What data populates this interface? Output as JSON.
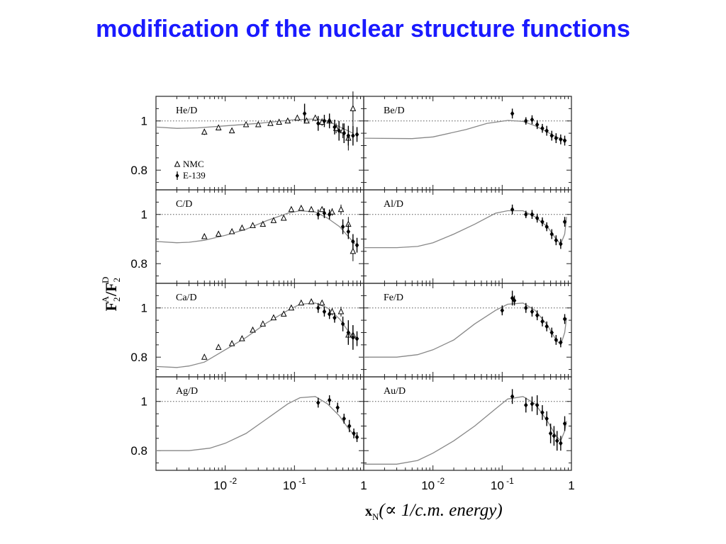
{
  "slide": {
    "title": "modification of the nuclear structure functions",
    "title_color": "#1a1aff"
  },
  "chart_data": {
    "type": "scatter",
    "title": "",
    "ylabel": "F2A/F2D",
    "ylabel_parts": {
      "main": "F",
      "sub": "2",
      "sup": "A",
      "slash": "/",
      "main2": "F",
      "sub2": "2",
      "sup2": "D"
    },
    "xlabel_parts": {
      "main": "x",
      "sub": "N",
      "rest": "(∝ 1/c.m. energy)"
    },
    "x_scale": "log",
    "xlim": [
      0.001,
      1
    ],
    "ylim": [
      0.72,
      1.1
    ],
    "x_tick_labels": [
      {
        "base": "10",
        "exp": "-2",
        "value": 0.01
      },
      {
        "base": "10",
        "exp": "-1",
        "value": 0.1
      },
      {
        "base": "1",
        "exp": "",
        "value": 1
      }
    ],
    "y_tick_labels": [
      "1",
      "0.8"
    ],
    "y_tick_values": [
      1,
      0.8
    ],
    "reference_line": 1,
    "legend": [
      {
        "name": "NMC",
        "marker": "open-triangle"
      },
      {
        "name": "E-139",
        "marker": "filled-diamond"
      }
    ],
    "panels": [
      {
        "label": "He/D",
        "curve": [
          [
            0.001,
            0.975
          ],
          [
            0.002,
            0.97
          ],
          [
            0.004,
            0.972
          ],
          [
            0.01,
            0.98
          ],
          [
            0.03,
            0.99
          ],
          [
            0.1,
            1.005
          ],
          [
            0.2,
            1.008
          ],
          [
            0.3,
            1.0
          ],
          [
            0.5,
            0.97
          ],
          [
            0.7,
            0.95
          ]
        ],
        "nmc": [
          [
            0.005,
            0.955,
            0.012
          ],
          [
            0.008,
            0.972,
            0.01
          ],
          [
            0.0125,
            0.96,
            0.01
          ],
          [
            0.02,
            0.985,
            0.008
          ],
          [
            0.03,
            0.985,
            0.008
          ],
          [
            0.045,
            0.99,
            0.008
          ],
          [
            0.06,
            0.995,
            0.008
          ],
          [
            0.08,
            1.0,
            0.008
          ],
          [
            0.11,
            1.012,
            0.01
          ],
          [
            0.15,
            1.0,
            0.01
          ],
          [
            0.2,
            1.012,
            0.01
          ],
          [
            0.25,
            0.995,
            0.015
          ],
          [
            0.32,
            1.0,
            0.02
          ],
          [
            0.4,
            0.97,
            0.02
          ],
          [
            0.5,
            0.96,
            0.03
          ],
          [
            0.6,
            0.93,
            0.05
          ],
          [
            0.7,
            1.05,
            0.07
          ]
        ],
        "e139": [
          [
            0.14,
            1.03,
            0.04
          ],
          [
            0.22,
            0.99,
            0.03
          ],
          [
            0.27,
            1.0,
            0.025
          ],
          [
            0.32,
            1.0,
            0.03
          ],
          [
            0.38,
            0.975,
            0.03
          ],
          [
            0.44,
            0.96,
            0.04
          ],
          [
            0.52,
            0.95,
            0.04
          ],
          [
            0.6,
            0.94,
            0.04
          ],
          [
            0.7,
            0.94,
            0.04
          ],
          [
            0.8,
            0.945,
            0.03
          ]
        ],
        "show_legend": true
      },
      {
        "label": "Be/D",
        "curve": [
          [
            0.001,
            0.93
          ],
          [
            0.005,
            0.928
          ],
          [
            0.01,
            0.935
          ],
          [
            0.03,
            0.965
          ],
          [
            0.06,
            0.99
          ],
          [
            0.12,
            1.002
          ],
          [
            0.2,
            0.998
          ],
          [
            0.3,
            0.98
          ],
          [
            0.45,
            0.955
          ],
          [
            0.6,
            0.935
          ],
          [
            0.75,
            0.925
          ],
          [
            0.85,
            0.922
          ]
        ],
        "nmc": [],
        "e139": [
          [
            0.14,
            1.03,
            0.02
          ],
          [
            0.22,
            1.0,
            0.015
          ],
          [
            0.27,
            1.005,
            0.018
          ],
          [
            0.32,
            0.985,
            0.018
          ],
          [
            0.38,
            0.97,
            0.018
          ],
          [
            0.44,
            0.96,
            0.02
          ],
          [
            0.52,
            0.94,
            0.02
          ],
          [
            0.6,
            0.93,
            0.02
          ],
          [
            0.7,
            0.925,
            0.02
          ],
          [
            0.8,
            0.92,
            0.02
          ]
        ],
        "show_legend": false
      },
      {
        "label": "C/D",
        "curve": [
          [
            0.001,
            0.89
          ],
          [
            0.002,
            0.885
          ],
          [
            0.003,
            0.887
          ],
          [
            0.005,
            0.895
          ],
          [
            0.01,
            0.915
          ],
          [
            0.02,
            0.94
          ],
          [
            0.04,
            0.975
          ],
          [
            0.08,
            1.005
          ],
          [
            0.12,
            1.015
          ],
          [
            0.2,
            1.01
          ],
          [
            0.3,
            0.985
          ],
          [
            0.45,
            0.95
          ],
          [
            0.6,
            0.91
          ],
          [
            0.75,
            0.88
          ]
        ],
        "nmc": [
          [
            0.005,
            0.91,
            0.01
          ],
          [
            0.008,
            0.92,
            0.01
          ],
          [
            0.0125,
            0.93,
            0.008
          ],
          [
            0.0175,
            0.945,
            0.008
          ],
          [
            0.025,
            0.955,
            0.008
          ],
          [
            0.035,
            0.96,
            0.008
          ],
          [
            0.05,
            0.975,
            0.008
          ],
          [
            0.07,
            0.985,
            0.008
          ],
          [
            0.09,
            1.02,
            0.008
          ],
          [
            0.125,
            1.025,
            0.008
          ],
          [
            0.175,
            1.02,
            0.008
          ],
          [
            0.25,
            1.02,
            0.01
          ],
          [
            0.35,
            1.01,
            0.015
          ],
          [
            0.47,
            1.02,
            0.02
          ],
          [
            0.6,
            0.96,
            0.03
          ],
          [
            0.7,
            0.85,
            0.04
          ]
        ],
        "e139": [
          [
            0.22,
            1.0,
            0.02
          ],
          [
            0.27,
            1.005,
            0.02
          ],
          [
            0.32,
            1.0,
            0.02
          ],
          [
            0.5,
            0.95,
            0.03
          ],
          [
            0.6,
            0.93,
            0.03
          ],
          [
            0.7,
            0.89,
            0.03
          ],
          [
            0.8,
            0.875,
            0.03
          ]
        ],
        "show_legend": false
      },
      {
        "label": "Al/D",
        "curve": [
          [
            0.001,
            0.865
          ],
          [
            0.003,
            0.865
          ],
          [
            0.006,
            0.87
          ],
          [
            0.01,
            0.885
          ],
          [
            0.02,
            0.92
          ],
          [
            0.04,
            0.96
          ],
          [
            0.08,
            1.005
          ],
          [
            0.12,
            1.015
          ],
          [
            0.2,
            1.015
          ],
          [
            0.3,
            0.99
          ],
          [
            0.45,
            0.95
          ],
          [
            0.6,
            0.9
          ],
          [
            0.7,
            0.88
          ],
          [
            0.8,
            0.92
          ],
          [
            0.85,
            0.99
          ]
        ],
        "nmc": [],
        "e139": [
          [
            0.14,
            1.02,
            0.02
          ],
          [
            0.22,
            1.0,
            0.015
          ],
          [
            0.27,
            1.0,
            0.018
          ],
          [
            0.32,
            0.985,
            0.018
          ],
          [
            0.38,
            0.97,
            0.018
          ],
          [
            0.44,
            0.95,
            0.018
          ],
          [
            0.52,
            0.92,
            0.02
          ],
          [
            0.6,
            0.895,
            0.02
          ],
          [
            0.7,
            0.88,
            0.02
          ],
          [
            0.8,
            0.97,
            0.02
          ]
        ],
        "show_legend": false
      },
      {
        "label": "Ca/D",
        "curve": [
          [
            0.001,
            0.762
          ],
          [
            0.002,
            0.758
          ],
          [
            0.003,
            0.764
          ],
          [
            0.005,
            0.78
          ],
          [
            0.01,
            0.83
          ],
          [
            0.02,
            0.88
          ],
          [
            0.04,
            0.94
          ],
          [
            0.08,
            0.99
          ],
          [
            0.12,
            1.015
          ],
          [
            0.2,
            1.02
          ],
          [
            0.3,
            1.0
          ],
          [
            0.45,
            0.955
          ],
          [
            0.6,
            0.905
          ],
          [
            0.75,
            0.875
          ]
        ],
        "nmc": [
          [
            0.005,
            0.8,
            0.01
          ],
          [
            0.008,
            0.84,
            0.01
          ],
          [
            0.0125,
            0.855,
            0.01
          ],
          [
            0.0175,
            0.875,
            0.008
          ],
          [
            0.025,
            0.91,
            0.008
          ],
          [
            0.035,
            0.935,
            0.008
          ],
          [
            0.05,
            0.96,
            0.008
          ],
          [
            0.07,
            0.975,
            0.008
          ],
          [
            0.09,
            1.0,
            0.008
          ],
          [
            0.125,
            1.02,
            0.008
          ],
          [
            0.175,
            1.025,
            0.008
          ],
          [
            0.25,
            1.02,
            0.01
          ],
          [
            0.35,
            0.985,
            0.015
          ],
          [
            0.47,
            0.985,
            0.02
          ],
          [
            0.6,
            0.89,
            0.03
          ],
          [
            0.7,
            0.89,
            0.04
          ]
        ],
        "e139": [
          [
            0.22,
            1.0,
            0.02
          ],
          [
            0.27,
            0.985,
            0.02
          ],
          [
            0.32,
            0.975,
            0.02
          ],
          [
            0.38,
            0.96,
            0.02
          ],
          [
            0.5,
            0.935,
            0.03
          ],
          [
            0.6,
            0.9,
            0.05
          ],
          [
            0.7,
            0.88,
            0.05
          ],
          [
            0.8,
            0.875,
            0.03
          ]
        ],
        "show_legend": false
      },
      {
        "label": "Fe/D",
        "curve": [
          [
            0.001,
            0.8
          ],
          [
            0.003,
            0.8
          ],
          [
            0.006,
            0.81
          ],
          [
            0.01,
            0.83
          ],
          [
            0.02,
            0.87
          ],
          [
            0.04,
            0.935
          ],
          [
            0.08,
            0.99
          ],
          [
            0.12,
            1.015
          ],
          [
            0.2,
            1.02
          ],
          [
            0.3,
            0.99
          ],
          [
            0.45,
            0.93
          ],
          [
            0.6,
            0.87
          ],
          [
            0.7,
            0.85
          ],
          [
            0.8,
            0.9
          ],
          [
            0.85,
            0.96
          ]
        ],
        "nmc": [],
        "e139": [
          [
            0.1,
            0.99,
            0.02
          ],
          [
            0.14,
            1.04,
            0.03
          ],
          [
            0.15,
            1.03,
            0.02
          ],
          [
            0.22,
            1.0,
            0.02
          ],
          [
            0.27,
            0.985,
            0.02
          ],
          [
            0.32,
            0.97,
            0.02
          ],
          [
            0.38,
            0.945,
            0.02
          ],
          [
            0.44,
            0.925,
            0.02
          ],
          [
            0.52,
            0.9,
            0.02
          ],
          [
            0.6,
            0.87,
            0.02
          ],
          [
            0.7,
            0.86,
            0.02
          ],
          [
            0.8,
            0.955,
            0.02
          ]
        ],
        "show_legend": false
      },
      {
        "label": "Ag/D",
        "curve": [
          [
            0.001,
            0.8
          ],
          [
            0.003,
            0.8
          ],
          [
            0.006,
            0.81
          ],
          [
            0.01,
            0.83
          ],
          [
            0.02,
            0.87
          ],
          [
            0.04,
            0.93
          ],
          [
            0.08,
            0.99
          ],
          [
            0.12,
            1.015
          ],
          [
            0.2,
            1.02
          ],
          [
            0.3,
            0.99
          ],
          [
            0.45,
            0.94
          ],
          [
            0.6,
            0.89
          ],
          [
            0.75,
            0.86
          ]
        ],
        "nmc": [],
        "e139": [
          [
            0.22,
            0.995,
            0.02
          ],
          [
            0.32,
            1.005,
            0.02
          ],
          [
            0.42,
            0.975,
            0.02
          ],
          [
            0.52,
            0.93,
            0.02
          ],
          [
            0.62,
            0.9,
            0.025
          ],
          [
            0.72,
            0.87,
            0.02
          ],
          [
            0.8,
            0.855,
            0.02
          ]
        ],
        "show_legend": false
      },
      {
        "label": "Au/D",
        "curve": [
          [
            0.001,
            0.745
          ],
          [
            0.003,
            0.745
          ],
          [
            0.006,
            0.76
          ],
          [
            0.01,
            0.79
          ],
          [
            0.02,
            0.84
          ],
          [
            0.04,
            0.9
          ],
          [
            0.08,
            0.97
          ],
          [
            0.12,
            1.01
          ],
          [
            0.2,
            1.02
          ],
          [
            0.3,
            0.99
          ],
          [
            0.45,
            0.92
          ],
          [
            0.6,
            0.86
          ],
          [
            0.7,
            0.84
          ],
          [
            0.8,
            0.88
          ],
          [
            0.85,
            0.92
          ]
        ],
        "nmc": [],
        "e139": [
          [
            0.14,
            1.02,
            0.03
          ],
          [
            0.22,
            0.985,
            0.03
          ],
          [
            0.27,
            0.99,
            0.03
          ],
          [
            0.32,
            0.985,
            0.04
          ],
          [
            0.38,
            0.955,
            0.03
          ],
          [
            0.44,
            0.93,
            0.03
          ],
          [
            0.5,
            0.87,
            0.04
          ],
          [
            0.56,
            0.86,
            0.04
          ],
          [
            0.62,
            0.84,
            0.04
          ],
          [
            0.7,
            0.83,
            0.03
          ],
          [
            0.8,
            0.91,
            0.03
          ]
        ],
        "show_legend": false
      }
    ]
  }
}
